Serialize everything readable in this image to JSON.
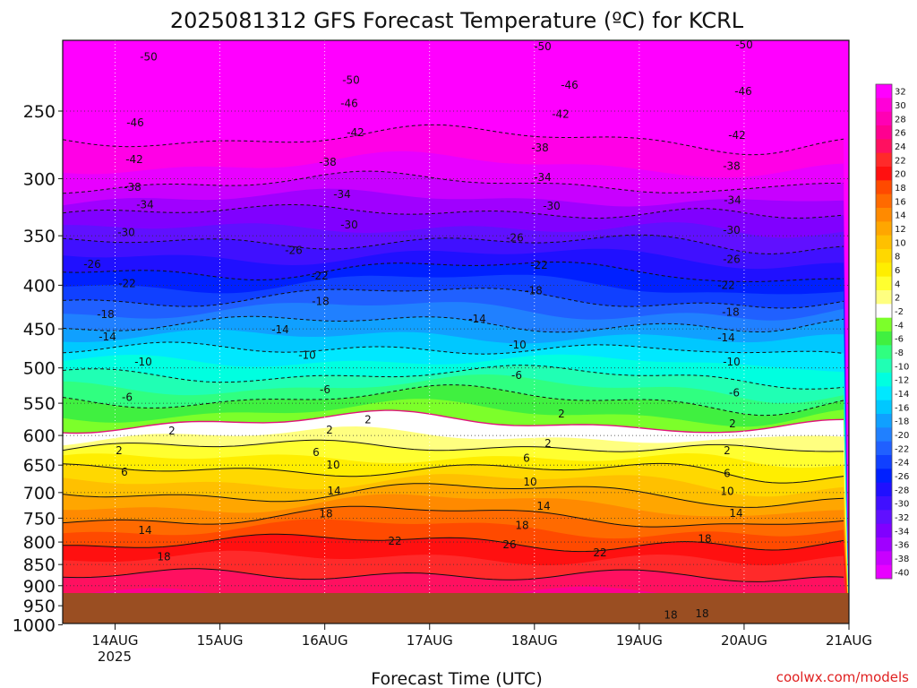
{
  "chart_data": {
    "type": "heatmap",
    "title": "2025081312 GFS Forecast Temperature (ºC) for KCRL",
    "xlabel": "Forecast Time (UTC)",
    "ylabel": "",
    "credit": "coolwx.com/models",
    "x_ticks": [
      "14AUG",
      "15AUG",
      "16AUG",
      "17AUG",
      "18AUG",
      "19AUG",
      "20AUG",
      "21AUG"
    ],
    "x_year_label": "2025",
    "xlim": [
      "2025-08-13 12Z",
      "2025-08-21 00Z"
    ],
    "y_scale": "log-pressure",
    "y_units": "hPa",
    "y_ticks": [
      250,
      300,
      350,
      400,
      450,
      500,
      550,
      600,
      650,
      700,
      750,
      800,
      850,
      900,
      950,
      1000
    ],
    "ylim": [
      1000,
      200
    ],
    "grid": true,
    "colorbar": {
      "labels": [
        "32",
        "30",
        "28",
        "26",
        "24",
        "22",
        "20",
        "18",
        "16",
        "14",
        "12",
        "10",
        "8",
        "6",
        "4",
        "2",
        "-2",
        "-4",
        "-6",
        "-8",
        "-10",
        "-12",
        "-14",
        "-16",
        "-18",
        "-20",
        "-22",
        "-24",
        "-26",
        "-28",
        "-30",
        "-32",
        "-34",
        "-36",
        "-38",
        "-40"
      ],
      "colors": [
        "#ff00ff",
        "#ff00d8",
        "#ff00b4",
        "#ff0090",
        "#ff1060",
        "#ff2a2a",
        "#ff1010",
        "#ff4a00",
        "#ff6a00",
        "#ff8a00",
        "#ffa600",
        "#ffc000",
        "#ffd800",
        "#ffee00",
        "#ffff30",
        "#ffff80",
        "#ffffff",
        "#7cff2a",
        "#40f040",
        "#30ff80",
        "#20ffb4",
        "#00ffe0",
        "#00e8ff",
        "#00c8ff",
        "#10a0ff",
        "#2080ff",
        "#2060ff",
        "#1040ff",
        "#0020ff",
        "#2010ff",
        "#4010ff",
        "#6010ff",
        "#8000ff",
        "#a000ff",
        "#c800ff",
        "#e800ff"
      ]
    },
    "contour_labels": [
      {
        "t": "-50",
        "p": 216,
        "x": 166
      },
      {
        "t": "-50",
        "p": 230,
        "x": 392
      },
      {
        "t": "-50",
        "p": 210,
        "x": 606
      },
      {
        "t": "-50",
        "p": 209,
        "x": 831
      },
      {
        "t": "-46",
        "p": 258,
        "x": 151
      },
      {
        "t": "-46",
        "p": 245,
        "x": 390
      },
      {
        "t": "-46",
        "p": 233,
        "x": 636
      },
      {
        "t": "-46",
        "p": 237,
        "x": 830
      },
      {
        "t": "-42",
        "p": 285,
        "x": 150
      },
      {
        "t": "-42",
        "p": 265,
        "x": 397
      },
      {
        "t": "-42",
        "p": 252,
        "x": 626
      },
      {
        "t": "-42",
        "p": 267,
        "x": 823
      },
      {
        "t": "-38",
        "p": 307,
        "x": 148
      },
      {
        "t": "-38",
        "p": 287,
        "x": 366
      },
      {
        "t": "-38",
        "p": 276,
        "x": 603
      },
      {
        "t": "-38",
        "p": 290,
        "x": 817
      },
      {
        "t": "-34",
        "p": 322,
        "x": 162
      },
      {
        "t": "-34",
        "p": 313,
        "x": 382
      },
      {
        "t": "-34",
        "p": 299,
        "x": 606
      },
      {
        "t": "-34",
        "p": 318,
        "x": 818
      },
      {
        "t": "-30",
        "p": 347,
        "x": 141
      },
      {
        "t": "-30",
        "p": 340,
        "x": 390
      },
      {
        "t": "-30",
        "p": 323,
        "x": 616
      },
      {
        "t": "-30",
        "p": 345,
        "x": 817
      },
      {
        "t": "-26",
        "p": 378,
        "x": 103
      },
      {
        "t": "-26",
        "p": 364,
        "x": 328
      },
      {
        "t": "-26",
        "p": 352,
        "x": 575
      },
      {
        "t": "-26",
        "p": 373,
        "x": 817
      },
      {
        "t": "-22",
        "p": 398,
        "x": 142
      },
      {
        "t": "-22",
        "p": 390,
        "x": 357
      },
      {
        "t": "-22",
        "p": 379,
        "x": 602
      },
      {
        "t": "-22",
        "p": 400,
        "x": 811
      },
      {
        "t": "-18",
        "p": 433,
        "x": 118
      },
      {
        "t": "-18",
        "p": 418,
        "x": 358
      },
      {
        "t": "-18",
        "p": 406,
        "x": 596
      },
      {
        "t": "-18",
        "p": 430,
        "x": 816
      },
      {
        "t": "-14",
        "p": 460,
        "x": 120
      },
      {
        "t": "-14",
        "p": 451,
        "x": 313
      },
      {
        "t": "-14",
        "p": 438,
        "x": 533
      },
      {
        "t": "-14",
        "p": 461,
        "x": 811
      },
      {
        "t": "-10",
        "p": 492,
        "x": 160
      },
      {
        "t": "-10",
        "p": 483,
        "x": 343
      },
      {
        "t": "-10",
        "p": 470,
        "x": 578
      },
      {
        "t": "-10",
        "p": 492,
        "x": 817
      },
      {
        "t": "-6",
        "p": 541,
        "x": 142
      },
      {
        "t": "-6",
        "p": 530,
        "x": 363
      },
      {
        "t": "-6",
        "p": 510,
        "x": 577
      },
      {
        "t": "-6",
        "p": 535,
        "x": 820
      },
      {
        "t": "2",
        "p": 575,
        "x": 411
      },
      {
        "t": "2",
        "p": 566,
        "x": 627
      },
      {
        "t": "2",
        "p": 581,
        "x": 818
      },
      {
        "t": "2",
        "p": 593,
        "x": 192
      },
      {
        "t": "2",
        "p": 591,
        "x": 368
      },
      {
        "t": "2",
        "p": 613,
        "x": 612
      },
      {
        "t": "2",
        "p": 625,
        "x": 133
      },
      {
        "t": "2",
        "p": 625,
        "x": 812
      },
      {
        "t": "6",
        "p": 662,
        "x": 139
      },
      {
        "t": "6",
        "p": 628,
        "x": 353
      },
      {
        "t": "6",
        "p": 638,
        "x": 588
      },
      {
        "t": "6",
        "p": 665,
        "x": 812
      },
      {
        "t": "10",
        "p": 650,
        "x": 372
      },
      {
        "t": "10",
        "p": 680,
        "x": 592
      },
      {
        "t": "10",
        "p": 698,
        "x": 812
      },
      {
        "t": "14",
        "p": 775,
        "x": 162
      },
      {
        "t": "14",
        "p": 697,
        "x": 373
      },
      {
        "t": "14",
        "p": 726,
        "x": 607
      },
      {
        "t": "14",
        "p": 740,
        "x": 822
      },
      {
        "t": "18",
        "p": 832,
        "x": 183
      },
      {
        "t": "18",
        "p": 741,
        "x": 364
      },
      {
        "t": "18",
        "p": 765,
        "x": 583
      },
      {
        "t": "18",
        "p": 793,
        "x": 787
      },
      {
        "t": "22",
        "p": 798,
        "x": 441
      },
      {
        "t": "22",
        "p": 823,
        "x": 670
      },
      {
        "t": "26",
        "p": 806,
        "x": 569
      },
      {
        "t": "18",
        "p": 974,
        "x": 749
      },
      {
        "t": "18",
        "p": 970,
        "x": 784
      }
    ]
  }
}
